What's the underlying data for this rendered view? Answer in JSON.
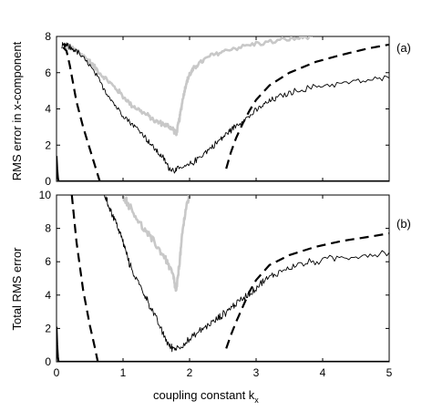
{
  "chart_data": {
    "type": "line",
    "xlabel": "coupling constant k",
    "xlabel_subscript": "x",
    "x_ticks": [
      "0",
      "1",
      "2",
      "3",
      "4",
      "5"
    ],
    "xlim": [
      0,
      5
    ],
    "grid": false,
    "legend": "none",
    "panels": [
      {
        "tag": "(a)",
        "ylabel": "RMS error in x-component",
        "ylim": [
          0,
          8
        ],
        "y_ticks": [
          "0",
          "2",
          "4",
          "6",
          "8"
        ],
        "series": [
          {
            "color": "#c8c8c8",
            "style": "solid",
            "width": "thick",
            "x": [
              0.12,
              0.2,
              0.35,
              0.5,
              0.7,
              0.9,
              1.1,
              1.3,
              1.5,
              1.65,
              1.75,
              1.8,
              1.85,
              1.9,
              1.95,
              2.0,
              2.1,
              2.3,
              2.6,
              3.0,
              3.5,
              3.85
            ],
            "y": [
              7.5,
              7.4,
              7.1,
              6.6,
              5.8,
              5.1,
              4.3,
              3.8,
              3.3,
              3.1,
              2.9,
              2.6,
              3.5,
              4.6,
              5.4,
              5.9,
              6.4,
              6.9,
              7.3,
              7.6,
              7.85,
              8.0
            ],
            "noise": 0.18
          },
          {
            "color": "#000000",
            "style": "solid",
            "width": "thin",
            "x": [
              0.08,
              0.15,
              0.3,
              0.5,
              0.7,
              0.9,
              1.1,
              1.3,
              1.45,
              1.6,
              1.7,
              1.8,
              2.0,
              2.2,
              2.4,
              2.55,
              2.7,
              2.9,
              3.1,
              3.3,
              3.6,
              4.0,
              4.5,
              5.0
            ],
            "y": [
              7.45,
              7.5,
              7.2,
              6.4,
              5.2,
              4.1,
              3.3,
              2.6,
              1.9,
              1.3,
              0.7,
              0.6,
              0.9,
              1.5,
              2.1,
              2.6,
              3.1,
              3.6,
              4.2,
              4.6,
              5.0,
              5.3,
              5.5,
              5.7
            ],
            "noise": 0.22
          },
          {
            "color": "#000000",
            "style": "dashed",
            "width": "thick",
            "x": [
              0.1,
              0.15,
              0.2,
              0.3,
              0.4,
              0.5,
              0.6,
              0.65
            ],
            "y": [
              7.4,
              7.2,
              6.4,
              4.4,
              3.0,
              1.8,
              0.6,
              0.0
            ]
          },
          {
            "color": "#000000",
            "style": "dashed",
            "width": "thick",
            "x": [
              2.55,
              2.62,
              2.7,
              2.8,
              2.9,
              3.0,
              3.2,
              3.5,
              3.9,
              4.3,
              4.7,
              5.0
            ],
            "y": [
              0.7,
              1.6,
              2.4,
              3.2,
              3.9,
              4.5,
              5.3,
              6.0,
              6.6,
              7.0,
              7.35,
              7.55
            ]
          },
          {
            "color": "#000000",
            "style": "solid",
            "width": "thick",
            "x": [
              0.0,
              0.01,
              0.02,
              0.03,
              0.05,
              0.1,
              5.0
            ],
            "y": [
              1.4,
              0.7,
              0.2,
              0.0,
              0.0,
              0.0,
              0.0
            ]
          }
        ]
      },
      {
        "tag": "(b)",
        "ylabel": "Total RMS error",
        "ylim": [
          0,
          10
        ],
        "y_ticks": [
          "0",
          "2",
          "4",
          "6",
          "8",
          "10"
        ],
        "series": [
          {
            "color": "#c8c8c8",
            "style": "solid",
            "width": "thick",
            "x": [
              1.0,
              1.1,
              1.3,
              1.5,
              1.65,
              1.75,
              1.8,
              1.85,
              1.9,
              1.95,
              2.0
            ],
            "y": [
              10.0,
              9.3,
              8.0,
              7.0,
              6.1,
              5.2,
              4.2,
              6.0,
              8.0,
              9.3,
              10.0
            ],
            "noise": 0.28
          },
          {
            "color": "#000000",
            "style": "solid",
            "width": "thin",
            "x": [
              0.72,
              0.8,
              0.9,
              1.0,
              1.1,
              1.3,
              1.45,
              1.6,
              1.7,
              1.8,
              2.0,
              2.2,
              2.4,
              2.55,
              2.7,
              2.9,
              3.1,
              3.3,
              3.6,
              4.0,
              4.5,
              5.0
            ],
            "y": [
              10.0,
              9.2,
              8.3,
              7.2,
              5.8,
              4.2,
              3.0,
              1.7,
              0.9,
              0.8,
              1.3,
              2.0,
              2.5,
              3.0,
              3.5,
              4.1,
              4.8,
              5.3,
              5.8,
              6.1,
              6.35,
              6.55
            ],
            "noise": 0.28
          },
          {
            "color": "#000000",
            "style": "dashed",
            "width": "thick",
            "x": [
              0.23,
              0.3,
              0.4,
              0.5,
              0.58,
              0.62
            ],
            "y": [
              10.0,
              7.2,
              4.3,
              2.2,
              0.8,
              0.0
            ]
          },
          {
            "color": "#000000",
            "style": "dashed",
            "width": "thick",
            "x": [
              2.55,
              2.62,
              2.7,
              2.8,
              2.9,
              3.0,
              3.2,
              3.5,
              3.9,
              4.3,
              4.7,
              5.0
            ],
            "y": [
              0.8,
              1.6,
              2.4,
              3.3,
              4.2,
              4.9,
              5.8,
              6.4,
              6.9,
              7.25,
              7.5,
              7.7
            ]
          },
          {
            "color": "#000000",
            "style": "solid",
            "width": "thick",
            "x": [
              0.0,
              0.01,
              0.02,
              0.03,
              0.05,
              0.1,
              5.0
            ],
            "y": [
              2.1,
              1.0,
              0.3,
              0.0,
              0.0,
              0.0,
              0.0
            ]
          }
        ]
      }
    ]
  }
}
